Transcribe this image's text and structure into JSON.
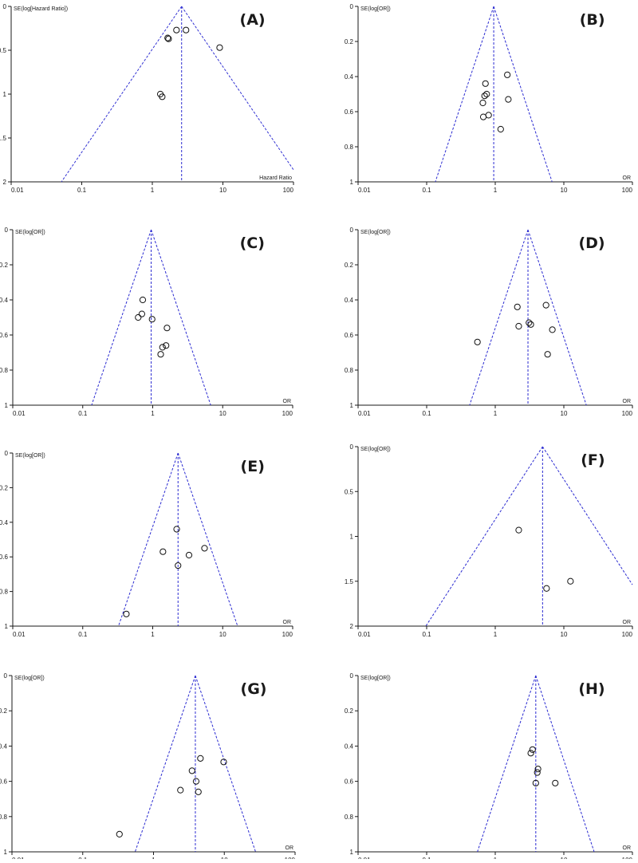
{
  "figure": {
    "x_ticks": [
      "0.01",
      "0.1",
      "1",
      "10",
      "100"
    ]
  },
  "chart_data": [
    {
      "type": "scatter",
      "subtype": "funnel-plot",
      "panel": "(A)",
      "ylabel": "SE(log[Hazard Ratio])",
      "xlabel": "Hazard Ratio",
      "xscale": "log",
      "xlim": [
        0.01,
        100
      ],
      "ylim": [
        0,
        2
      ],
      "y_reversed": true,
      "yticks": [
        "0",
        "0.5",
        "1",
        "1.5",
        "2"
      ],
      "pooled_estimate": 2.6,
      "funnel_lines": "pseudo 95% confidence limits, dashed blue",
      "points": [
        {
          "x": 2.2,
          "y": 0.27
        },
        {
          "x": 3.0,
          "y": 0.27
        },
        {
          "x": 1.65,
          "y": 0.36
        },
        {
          "x": 1.7,
          "y": 0.37
        },
        {
          "x": 9.0,
          "y": 0.47
        },
        {
          "x": 1.3,
          "y": 1.0
        },
        {
          "x": 1.38,
          "y": 1.03
        }
      ]
    },
    {
      "type": "scatter",
      "subtype": "funnel-plot",
      "panel": "(B)",
      "ylabel": "SE(log[OR])",
      "xlabel": "OR",
      "xscale": "log",
      "xlim": [
        0.01,
        100
      ],
      "ylim": [
        0,
        1
      ],
      "y_reversed": true,
      "yticks": [
        "0",
        "0.2",
        "0.4",
        "0.6",
        "0.8",
        "1"
      ],
      "pooled_estimate": 0.95,
      "funnel_lines": "pseudo 95% confidence limits, dashed blue",
      "points": [
        {
          "x": 1.5,
          "y": 0.39
        },
        {
          "x": 0.72,
          "y": 0.44
        },
        {
          "x": 0.75,
          "y": 0.5
        },
        {
          "x": 0.7,
          "y": 0.51
        },
        {
          "x": 0.66,
          "y": 0.55
        },
        {
          "x": 1.55,
          "y": 0.53
        },
        {
          "x": 0.8,
          "y": 0.62
        },
        {
          "x": 0.67,
          "y": 0.63
        },
        {
          "x": 1.2,
          "y": 0.7
        }
      ]
    },
    {
      "type": "scatter",
      "subtype": "funnel-plot",
      "panel": "(C)",
      "ylabel": "SE(log[OR])",
      "xlabel": "OR",
      "xscale": "log",
      "xlim": [
        0.01,
        100
      ],
      "ylim": [
        0,
        1
      ],
      "y_reversed": true,
      "yticks": [
        "0",
        "0.2",
        "0.4",
        "0.6",
        "0.8",
        "1"
      ],
      "pooled_estimate": 0.95,
      "funnel_lines": "pseudo 95% confidence limits, dashed blue",
      "points": [
        {
          "x": 0.72,
          "y": 0.4
        },
        {
          "x": 0.7,
          "y": 0.48
        },
        {
          "x": 0.62,
          "y": 0.5
        },
        {
          "x": 0.98,
          "y": 0.51
        },
        {
          "x": 1.6,
          "y": 0.56
        },
        {
          "x": 1.55,
          "y": 0.66
        },
        {
          "x": 1.38,
          "y": 0.67
        },
        {
          "x": 1.3,
          "y": 0.71
        }
      ]
    },
    {
      "type": "scatter",
      "subtype": "funnel-plot",
      "panel": "(D)",
      "ylabel": "SE(log[OR])",
      "xlabel": "OR",
      "xscale": "log",
      "xlim": [
        0.01,
        100
      ],
      "ylim": [
        0,
        1
      ],
      "y_reversed": true,
      "yticks": [
        "0",
        "0.2",
        "0.4",
        "0.6",
        "0.8",
        "1"
      ],
      "pooled_estimate": 3.0,
      "funnel_lines": "pseudo 95% confidence limits, dashed blue",
      "points": [
        {
          "x": 2.1,
          "y": 0.44
        },
        {
          "x": 5.5,
          "y": 0.43
        },
        {
          "x": 3.1,
          "y": 0.53
        },
        {
          "x": 3.3,
          "y": 0.54
        },
        {
          "x": 2.2,
          "y": 0.55
        },
        {
          "x": 6.8,
          "y": 0.57
        },
        {
          "x": 0.55,
          "y": 0.64
        },
        {
          "x": 5.8,
          "y": 0.71
        }
      ]
    },
    {
      "type": "scatter",
      "subtype": "funnel-plot",
      "panel": "(E)",
      "ylabel": "SE(log[OR])",
      "xlabel": "OR",
      "xscale": "log",
      "xlim": [
        0.01,
        100
      ],
      "ylim": [
        0,
        1
      ],
      "y_reversed": true,
      "yticks": [
        "0",
        "0.2",
        "0.4",
        "0.6",
        "0.8",
        "1"
      ],
      "pooled_estimate": 2.3,
      "funnel_lines": "pseudo 95% confidence limits, dashed blue",
      "points": [
        {
          "x": 2.2,
          "y": 0.44
        },
        {
          "x": 1.4,
          "y": 0.57
        },
        {
          "x": 5.5,
          "y": 0.55
        },
        {
          "x": 3.3,
          "y": 0.59
        },
        {
          "x": 2.3,
          "y": 0.65
        },
        {
          "x": 0.42,
          "y": 0.93
        }
      ]
    },
    {
      "type": "scatter",
      "subtype": "funnel-plot",
      "panel": "(F)",
      "ylabel": "SE(log[OR])",
      "xlabel": "OR",
      "xscale": "log",
      "xlim": [
        0.01,
        100
      ],
      "ylim": [
        0,
        2
      ],
      "y_reversed": true,
      "yticks": [
        "0",
        "0.5",
        "1",
        "1.5",
        "2"
      ],
      "pooled_estimate": 4.9,
      "funnel_lines": "pseudo 95% confidence limits, dashed blue",
      "points": [
        {
          "x": 2.2,
          "y": 0.93
        },
        {
          "x": 12.5,
          "y": 1.5
        },
        {
          "x": 5.6,
          "y": 1.58
        }
      ]
    },
    {
      "type": "scatter",
      "subtype": "funnel-plot",
      "panel": "(G)",
      "ylabel": "SE(log[OR])",
      "xlabel": "OR",
      "xscale": "log",
      "xlim": [
        0.01,
        100
      ],
      "ylim": [
        0,
        1
      ],
      "y_reversed": true,
      "yticks": [
        "0",
        "0.2",
        "0.4",
        "0.6",
        "0.8",
        "1"
      ],
      "pooled_estimate": 3.9,
      "funnel_lines": "pseudo 95% confidence limits, dashed blue",
      "points": [
        {
          "x": 4.6,
          "y": 0.47
        },
        {
          "x": 9.8,
          "y": 0.49
        },
        {
          "x": 3.5,
          "y": 0.54
        },
        {
          "x": 4.0,
          "y": 0.6
        },
        {
          "x": 2.4,
          "y": 0.65
        },
        {
          "x": 4.3,
          "y": 0.66
        },
        {
          "x": 0.33,
          "y": 0.9
        }
      ]
    },
    {
      "type": "scatter",
      "subtype": "funnel-plot",
      "panel": "(H)",
      "ylabel": "SE(log[OR])",
      "xlabel": "OR",
      "xscale": "log",
      "xlim": [
        0.01,
        100
      ],
      "ylim": [
        0,
        1
      ],
      "y_reversed": true,
      "yticks": [
        "0",
        "0.2",
        "0.4",
        "0.6",
        "0.8",
        "1"
      ],
      "pooled_estimate": 3.9,
      "funnel_lines": "pseudo 95% confidence limits, dashed blue",
      "points": [
        {
          "x": 3.5,
          "y": 0.42
        },
        {
          "x": 3.3,
          "y": 0.44
        },
        {
          "x": 4.2,
          "y": 0.53
        },
        {
          "x": 4.1,
          "y": 0.55
        },
        {
          "x": 3.9,
          "y": 0.61
        },
        {
          "x": 7.5,
          "y": 0.61
        }
      ]
    }
  ],
  "colors": {
    "axis": "#1a1a1a",
    "funnel_line": "#2b2bd1",
    "marker_edge": "#111111",
    "background": "#ffffff"
  }
}
